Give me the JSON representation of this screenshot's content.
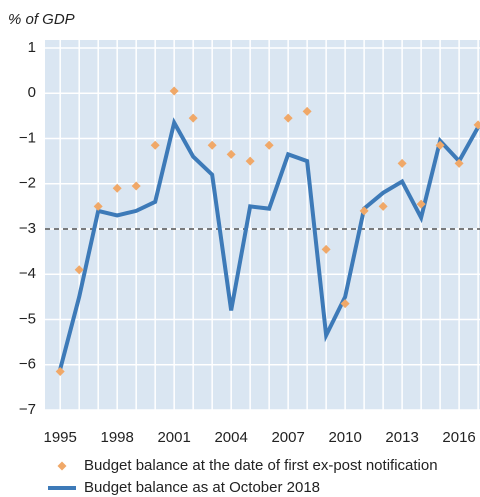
{
  "chart_data": {
    "type": "line",
    "y_label": "% of GDP",
    "x": [
      1995,
      1996,
      1997,
      1998,
      1999,
      2000,
      2001,
      2002,
      2003,
      2004,
      2005,
      2006,
      2007,
      2008,
      2009,
      2010,
      2011,
      2012,
      2013,
      2014,
      2015,
      2016,
      2017
    ],
    "series": [
      {
        "name": "Budget balance at the date of first ex-post notification",
        "color": "#f0a868",
        "marker": "diamond",
        "values": [
          -6.15,
          -3.9,
          -2.5,
          -2.1,
          -2.05,
          -1.15,
          0.05,
          -0.55,
          -1.15,
          -1.35,
          -1.5,
          -1.15,
          -0.55,
          -0.4,
          -3.45,
          -4.65,
          -2.6,
          -2.5,
          -1.55,
          -2.45,
          -1.15,
          -1.55,
          -0.7
        ]
      },
      {
        "name": "Budget balance as at October 2018",
        "color": "#3d7ab8",
        "marker": "line",
        "values": [
          -6.1,
          -4.5,
          -2.6,
          -2.7,
          -2.6,
          -2.4,
          -0.65,
          -1.4,
          -1.8,
          -4.8,
          -2.5,
          -2.55,
          -1.35,
          -1.5,
          -5.35,
          -4.5,
          -2.55,
          -2.2,
          -1.95,
          -2.75,
          -1.05,
          -1.5,
          -0.75
        ]
      }
    ],
    "xlim": [
      1994.2,
      2017.1
    ],
    "xticks": [
      1995,
      1998,
      2001,
      2004,
      2007,
      2010,
      2013,
      2016
    ],
    "x_grid": [
      1995,
      1996,
      1997,
      1998,
      1999,
      2000,
      2001,
      2002,
      2003,
      2004,
      2005,
      2006,
      2007,
      2008,
      2009,
      2010,
      2011,
      2012,
      2013,
      2014,
      2015,
      2016,
      2017
    ],
    "ylim": [
      -7,
      1
    ],
    "yticks": [
      1,
      0,
      {
        "value": -1,
        "label": "−1"
      },
      {
        "value": -2,
        "label": "−2"
      },
      {
        "value": -3,
        "label": "−3"
      },
      {
        "value": -4,
        "label": "−4"
      },
      {
        "value": -5,
        "label": "−5"
      },
      {
        "value": -6,
        "label": "−6"
      },
      {
        "value": -7,
        "label": "−7"
      }
    ],
    "reference_line": -3,
    "grid": true,
    "background": "#dae6f2"
  }
}
